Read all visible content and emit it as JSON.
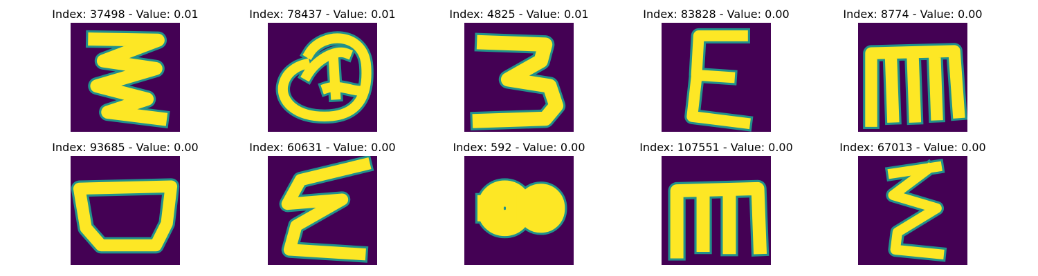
{
  "chart_data": {
    "type": "image_grid",
    "rows": 2,
    "cols": 5,
    "colormap": {
      "name": "viridis",
      "background": "#440154",
      "edge": "#21918c",
      "foreground": "#fde725"
    },
    "panels": [
      {
        "title": "Index: 37498 - Value: 0.01",
        "index": 37498,
        "value": 0.01,
        "glyph": "zigzag-3"
      },
      {
        "title": "Index: 78437 - Value: 0.01",
        "index": 78437,
        "value": 0.01,
        "glyph": "loop-q"
      },
      {
        "title": "Index: 4825 - Value: 0.01",
        "index": 4825,
        "value": 0.01,
        "glyph": "three"
      },
      {
        "title": "Index: 83828 - Value: 0.00",
        "index": 83828,
        "value": 0.0,
        "glyph": "epsilon"
      },
      {
        "title": "Index: 8774 - Value: 0.00",
        "index": 8774,
        "value": 0.0,
        "glyph": "m-shape"
      },
      {
        "title": "Index: 93685 - Value: 0.00",
        "index": 93685,
        "value": 0.0,
        "glyph": "bowl"
      },
      {
        "title": "Index: 60631 - Value: 0.00",
        "index": 60631,
        "value": 0.0,
        "glyph": "zigzag-e"
      },
      {
        "title": "Index: 592 - Value: 0.00",
        "index": 592,
        "value": 0.0,
        "glyph": "blob-80"
      },
      {
        "title": "Index: 107551 - Value: 0.00",
        "index": 107551,
        "value": 0.0,
        "glyph": "m-box"
      },
      {
        "title": "Index: 67013 - Value: 0.00",
        "index": 67013,
        "value": 0.0,
        "glyph": "zeta"
      }
    ]
  }
}
